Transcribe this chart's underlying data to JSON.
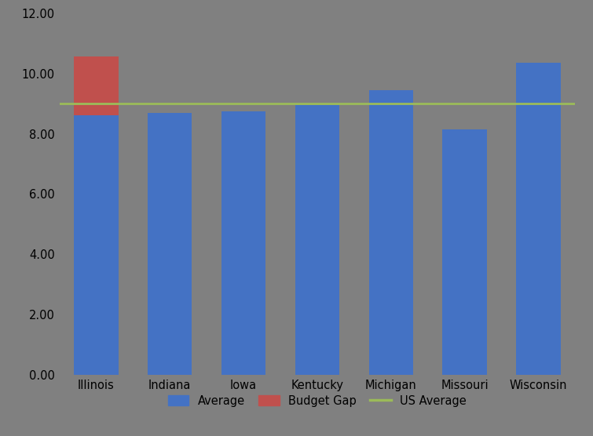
{
  "categories": [
    "Illinois",
    "Indiana",
    "Iowa",
    "Kentucky",
    "Michigan",
    "Missouri",
    "Wisconsin"
  ],
  "average_values": [
    8.62,
    8.7,
    8.75,
    8.95,
    9.45,
    8.15,
    10.35
  ],
  "budget_gap_values": [
    1.93,
    0,
    0,
    0,
    0,
    0,
    0
  ],
  "us_average": 9.0,
  "bar_color_average": "#4472C4",
  "bar_color_gap": "#C0504D",
  "us_avg_color": "#9BBB59",
  "background_color": "#808080",
  "ylim": [
    0,
    12
  ],
  "yticks": [
    0.0,
    2.0,
    4.0,
    6.0,
    8.0,
    10.0,
    12.0
  ],
  "ytick_labels": [
    "0.00",
    "2.00",
    "4.00",
    "6.00",
    "8.00",
    "10.00",
    "12.00"
  ],
  "legend_labels": [
    "Average",
    "Budget Gap",
    "US Average"
  ],
  "bar_width": 0.6
}
